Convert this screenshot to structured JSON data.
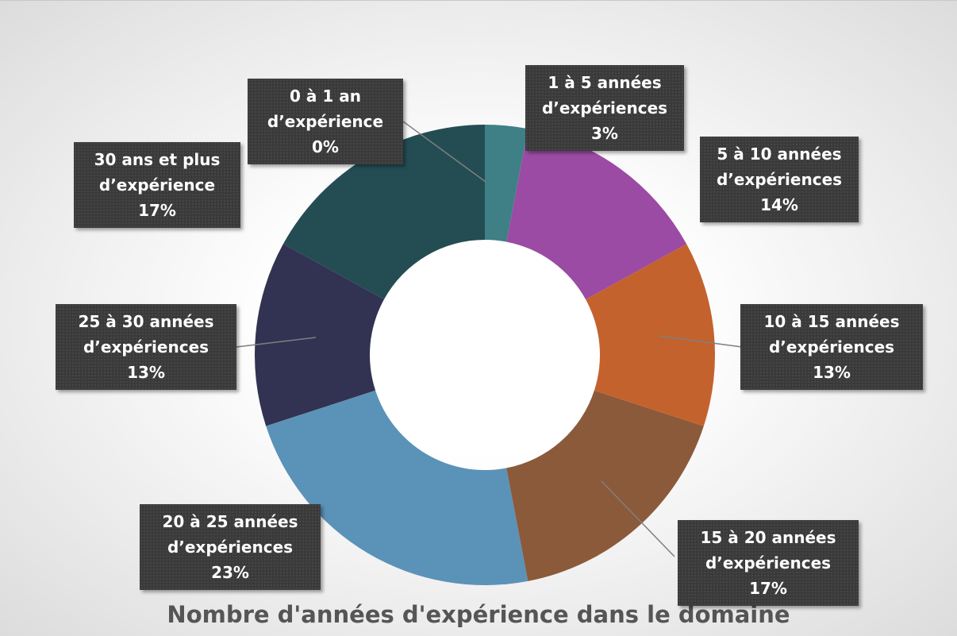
{
  "chart_data": {
    "type": "donut",
    "title": "Nombre d'années d'expérience dans le domaine",
    "categories": [
      "0 à 1 an d’expérience",
      "1 à 5 années d’expériences",
      "5 à 10 années d’expériences",
      "10 à 15 années d’expériences",
      "15 à 20 années d’expériences",
      "20 à 25 années d’expériences",
      "25 à 30 années d’expériences",
      "30 ans et plus d’expérience"
    ],
    "values": [
      0,
      3,
      14,
      13,
      17,
      23,
      13,
      17
    ],
    "value_labels": [
      "0%",
      "3%",
      "14%",
      "13%",
      "17%",
      "23%",
      "13%",
      "17%"
    ],
    "colors": [
      "#2e6e73",
      "#3f7f86",
      "#9b4ba3",
      "#c4622d",
      "#8b5a3a",
      "#5b92b8",
      "#323252",
      "#244d53"
    ]
  }
}
